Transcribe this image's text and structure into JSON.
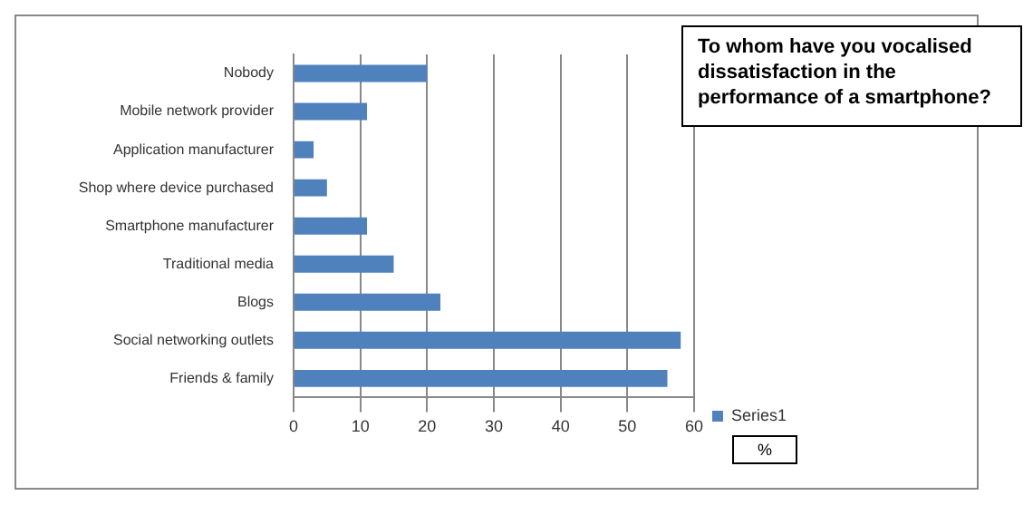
{
  "chart_data": {
    "type": "bar",
    "orientation": "horizontal",
    "title": "To whom have you vocalised dissatisfaction in the performance of a smartphone?",
    "categories": [
      "Nobody",
      "Mobile network provider",
      "Application manufacturer",
      "Shop where device purchased",
      "Smartphone manufacturer",
      "Traditional media",
      "Blogs",
      "Social networking outlets",
      "Friends & family"
    ],
    "series": [
      {
        "name": "Series1",
        "color": "#4f81bd",
        "values": [
          20,
          11,
          3,
          5,
          11,
          15,
          22,
          58,
          56
        ]
      }
    ],
    "xlim": [
      0,
      60
    ],
    "xticks": [
      0,
      10,
      20,
      30,
      40,
      50,
      60
    ],
    "grid": "x",
    "legend": "right",
    "annotations": [
      "%"
    ]
  }
}
